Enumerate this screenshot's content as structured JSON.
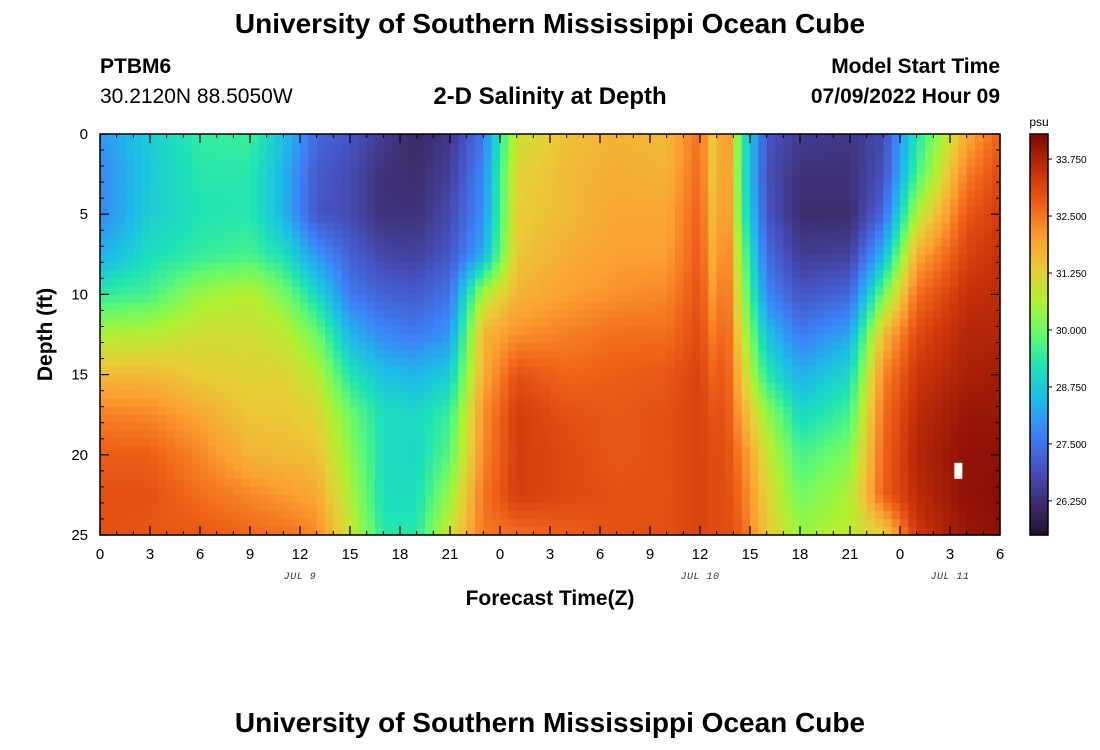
{
  "header": {
    "title": "University of Southern Mississippi Ocean Cube",
    "station_id": "PTBM6",
    "station_coords": "30.2120N  88.5050W",
    "plot_title": "2-D Salinity at Depth",
    "model_start_label": "Model Start Time",
    "model_start_value": "07/09/2022 Hour 09"
  },
  "footer": {
    "title": "University of Southern Mississippi Ocean Cube"
  },
  "chart_data": {
    "type": "heatmap",
    "title": "2-D Salinity at Depth",
    "xlabel": "Forecast Time(Z)",
    "ylabel": "Depth (ft)",
    "x_range_hours": [
      0,
      54
    ],
    "y_range_ft": [
      0,
      25
    ],
    "x_tick_values": [
      0,
      3,
      6,
      9,
      12,
      15,
      18,
      21,
      24,
      27,
      30,
      33,
      36,
      39,
      42,
      45,
      48,
      51,
      54
    ],
    "x_tick_labels": [
      "0",
      "3",
      "6",
      "9",
      "12",
      "15",
      "18",
      "21",
      "0",
      "3",
      "6",
      "9",
      "12",
      "15",
      "18",
      "21",
      "0",
      "3",
      "6"
    ],
    "y_tick_values": [
      0,
      5,
      10,
      15,
      20,
      25
    ],
    "y_tick_labels": [
      "0",
      "5",
      "10",
      "15",
      "20",
      "25"
    ],
    "date_labels": [
      {
        "label": "JUL 9",
        "hour": 12
      },
      {
        "label": "JUL 10",
        "hour": 36
      },
      {
        "label": "JUL 11",
        "hour": 51
      }
    ],
    "colorbar": {
      "unit": "psu",
      "min": 25.5,
      "max": 34.3,
      "ticks": [
        26.25,
        27.5,
        28.75,
        30.0,
        31.25,
        32.5,
        33.75
      ],
      "tick_labels": [
        "26.250",
        "27.500",
        "28.750",
        "30.000",
        "31.250",
        "32.500",
        "33.750"
      ]
    },
    "salinity_keyframes": {
      "depth_ft": [
        0,
        2.5,
        5,
        7.5,
        10,
        12.5,
        15,
        17.5,
        20,
        22.5,
        25
      ],
      "profiles": [
        {
          "hour": 0,
          "psu": [
            28.0,
            27.8,
            27.8,
            28.3,
            29.4,
            30.6,
            31.6,
            32.4,
            32.8,
            33.0,
            33.0
          ]
        },
        {
          "hour": 3,
          "psu": [
            28.8,
            28.7,
            28.8,
            29.1,
            29.6,
            30.7,
            31.6,
            32.3,
            32.8,
            33.0,
            32.9
          ]
        },
        {
          "hour": 6,
          "psu": [
            29.4,
            29.3,
            29.2,
            29.4,
            30.4,
            31.0,
            31.3,
            31.9,
            32.3,
            32.6,
            32.9
          ]
        },
        {
          "hour": 9,
          "psu": [
            29.5,
            29.3,
            29.3,
            29.6,
            30.7,
            31.0,
            31.2,
            31.4,
            31.7,
            32.3,
            32.7
          ]
        },
        {
          "hour": 11,
          "psu": [
            28.6,
            28.4,
            28.4,
            29.1,
            30.1,
            30.8,
            31.2,
            31.4,
            31.6,
            32.1,
            32.6
          ]
        },
        {
          "hour": 13,
          "psu": [
            27.3,
            27.1,
            27.0,
            28.0,
            29.0,
            30.0,
            30.7,
            31.2,
            31.5,
            31.9,
            32.3
          ]
        },
        {
          "hour": 15,
          "psu": [
            27.0,
            26.8,
            26.8,
            27.2,
            27.6,
            28.4,
            29.2,
            30.0,
            30.3,
            30.6,
            30.9
          ]
        },
        {
          "hour": 17,
          "psu": [
            26.5,
            26.3,
            26.3,
            26.7,
            27.2,
            27.8,
            28.6,
            29.1,
            29.1,
            29.1,
            29.3
          ]
        },
        {
          "hour": 19,
          "psu": [
            26.1,
            26.2,
            26.3,
            26.6,
            27.1,
            27.6,
            28.4,
            29.0,
            29.0,
            29.1,
            29.3
          ]
        },
        {
          "hour": 21,
          "psu": [
            26.4,
            26.6,
            26.8,
            27.0,
            27.5,
            28.0,
            28.8,
            29.5,
            29.8,
            30.4,
            31.0
          ]
        },
        {
          "hour": 23,
          "psu": [
            27.6,
            27.8,
            27.9,
            28.3,
            30.6,
            31.7,
            31.8,
            32.2,
            32.3,
            32.5,
            32.5
          ]
        },
        {
          "hour": 25,
          "psu": [
            30.9,
            31.2,
            31.3,
            31.4,
            31.7,
            32.2,
            33.0,
            33.3,
            33.3,
            33.3,
            32.6
          ]
        },
        {
          "hour": 28,
          "psu": [
            31.5,
            31.6,
            31.6,
            31.8,
            32.0,
            32.4,
            32.7,
            33.0,
            33.1,
            33.1,
            32.8
          ]
        },
        {
          "hour": 31,
          "psu": [
            31.7,
            31.8,
            31.9,
            32.0,
            32.2,
            32.6,
            32.8,
            32.9,
            32.9,
            33.0,
            33.0
          ]
        },
        {
          "hour": 34,
          "psu": [
            31.6,
            31.7,
            31.9,
            32.0,
            32.3,
            32.6,
            32.9,
            33.0,
            33.0,
            33.0,
            33.0
          ]
        },
        {
          "hour": 36,
          "psu": [
            32.6,
            32.7,
            32.8,
            32.9,
            33.0,
            33.1,
            33.2,
            33.2,
            33.2,
            33.2,
            33.2
          ]
        },
        {
          "hour": 37,
          "psu": [
            31.0,
            31.0,
            31.2,
            31.4,
            31.8,
            32.2,
            32.6,
            32.9,
            33.0,
            33.0,
            33.0
          ]
        },
        {
          "hour": 37.5,
          "psu": [
            32.8,
            32.8,
            32.8,
            32.9,
            33.0,
            33.1,
            33.1,
            33.1,
            33.1,
            33.1,
            33.1
          ]
        },
        {
          "hour": 38.5,
          "psu": [
            29.5,
            29.4,
            29.6,
            30.1,
            30.5,
            30.9,
            31.4,
            31.9,
            32.4,
            32.6,
            32.8
          ]
        },
        {
          "hour": 40,
          "psu": [
            27.0,
            26.9,
            27.0,
            27.4,
            27.8,
            28.6,
            29.3,
            30.4,
            30.9,
            31.2,
            31.4
          ]
        },
        {
          "hour": 42,
          "psu": [
            26.5,
            26.3,
            26.2,
            26.5,
            27.0,
            27.6,
            28.3,
            29.0,
            29.6,
            30.0,
            30.4
          ]
        },
        {
          "hour": 45,
          "psu": [
            26.4,
            26.3,
            26.2,
            26.6,
            27.3,
            28.2,
            29.0,
            29.6,
            30.2,
            30.6,
            30.8
          ]
        },
        {
          "hour": 47,
          "psu": [
            26.8,
            26.9,
            27.3,
            28.4,
            30.0,
            31.6,
            32.3,
            32.6,
            32.7,
            32.8,
            31.2
          ]
        },
        {
          "hour": 49,
          "psu": [
            29.2,
            29.6,
            30.6,
            31.8,
            32.6,
            33.1,
            33.4,
            33.6,
            33.7,
            33.6,
            33.4
          ]
        },
        {
          "hour": 52,
          "psu": [
            31.8,
            32.4,
            32.9,
            33.2,
            33.5,
            33.7,
            33.8,
            34.0,
            34.1,
            34.1,
            34.0
          ]
        },
        {
          "hour": 54,
          "psu": [
            32.8,
            33.1,
            33.3,
            33.5,
            33.6,
            33.7,
            33.9,
            34.0,
            34.1,
            34.2,
            34.1
          ]
        }
      ]
    },
    "marker": {
      "hour": 51.5,
      "depth_ft": 21
    }
  }
}
